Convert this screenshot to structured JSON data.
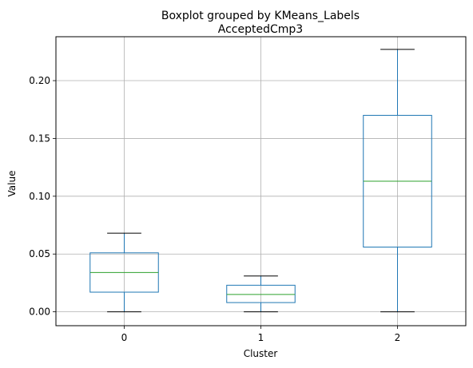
{
  "chart_data": {
    "type": "boxplot",
    "suptitle": "Boxplot grouped by KMeans_Labels",
    "title": "AcceptedCmp3",
    "xlabel": "Cluster",
    "ylabel": "Value",
    "categories": [
      "0",
      "1",
      "2"
    ],
    "yticks": [
      "0.00",
      "0.05",
      "0.10",
      "0.15",
      "0.20"
    ],
    "ylim": [
      -0.012,
      0.238
    ],
    "grid": true,
    "boxes": [
      {
        "category": "0",
        "whisker_low": 0.0,
        "q1": 0.017,
        "median": 0.034,
        "q3": 0.051,
        "whisker_high": 0.068
      },
      {
        "category": "1",
        "whisker_low": 0.0,
        "q1": 0.008,
        "median": 0.015,
        "q3": 0.023,
        "whisker_high": 0.031
      },
      {
        "category": "2",
        "whisker_low": 0.0,
        "q1": 0.056,
        "median": 0.113,
        "q3": 0.17,
        "whisker_high": 0.227
      }
    ],
    "colors": {
      "box": "#1f77b4",
      "median": "#2ca02c",
      "cap": "#000000",
      "grid": "#b0b0b0"
    }
  }
}
